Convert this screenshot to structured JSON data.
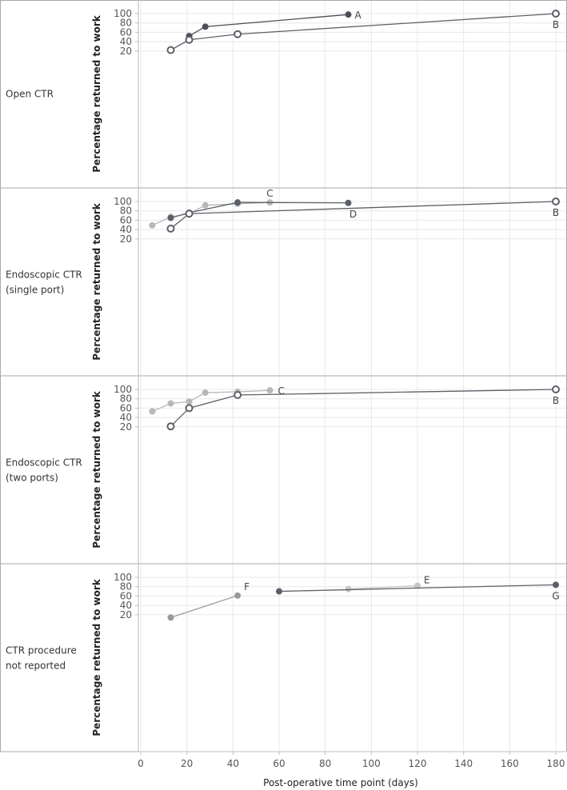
{
  "chart_data": {
    "type": "line",
    "xlabel": "Post-operative time point (days)",
    "xlim": [
      0,
      180
    ],
    "x_ticks": [
      0,
      20,
      40,
      60,
      80,
      100,
      120,
      140,
      160,
      180
    ],
    "ylim": [
      20,
      100
    ],
    "y_ticks": [
      20,
      40,
      60,
      80,
      100
    ],
    "grid": true,
    "colors": {
      "dark": "#4a4e57",
      "mid": "#5b6068",
      "gray": "#999999",
      "light": "#b8b8b8",
      "lighter": "#c6c6c6",
      "axis": "#bdbdbd",
      "grid": "#e8e8e8",
      "border": "#aaaaaa"
    },
    "panels": [
      {
        "label": "Open CTR",
        "ylabel": "Percentage returned to work",
        "series": [
          {
            "name": "A",
            "marker": "filled",
            "color": "dark",
            "points": [
              [
                21,
                52
              ],
              [
                28,
                72
              ],
              [
                90,
                98
              ]
            ]
          },
          {
            "name": "B",
            "marker": "hollow",
            "color": "mid",
            "points": [
              [
                13,
                22
              ],
              [
                21,
                44
              ],
              [
                42,
                56
              ],
              [
                180,
                100
              ]
            ]
          }
        ]
      },
      {
        "label": "Endoscopic CTR (single port)",
        "ylabel": "Percentage returned to work",
        "series": [
          {
            "name": "C",
            "marker": "filled",
            "color": "light",
            "points": [
              [
                5,
                49
              ],
              [
                13,
                67
              ],
              [
                21,
                74
              ],
              [
                28,
                92
              ],
              [
                42,
                95
              ],
              [
                56,
                98
              ]
            ]
          },
          {
            "name": "D",
            "marker": "filled",
            "color": "mid",
            "points": [
              [
                13,
                65
              ],
              [
                21,
                76
              ],
              [
                42,
                98
              ],
              [
                90,
                97
              ]
            ]
          },
          {
            "name": "B",
            "marker": "hollow",
            "color": "mid",
            "points": [
              [
                13,
                42
              ],
              [
                21,
                74
              ],
              [
                180,
                100
              ]
            ]
          }
        ]
      },
      {
        "label": "Endoscopic CTR (two ports)",
        "ylabel": "Percentage returned to work",
        "series": [
          {
            "name": "C",
            "marker": "filled",
            "color": "light",
            "points": [
              [
                5,
                53
              ],
              [
                13,
                70
              ],
              [
                21,
                74
              ],
              [
                28,
                93
              ],
              [
                42,
                95
              ],
              [
                56,
                98
              ]
            ]
          },
          {
            "name": "B",
            "marker": "hollow",
            "color": "mid",
            "points": [
              [
                13,
                21
              ],
              [
                21,
                60
              ],
              [
                42,
                88
              ],
              [
                180,
                100
              ]
            ]
          }
        ]
      },
      {
        "label": "CTR procedure not reported",
        "ylabel": "Percentage returned to work",
        "series": [
          {
            "name": "F",
            "marker": "filled",
            "color": "gray",
            "points": [
              [
                13,
                14
              ],
              [
                42,
                61
              ]
            ]
          },
          {
            "name": "E",
            "marker": "filled",
            "color": "lighter",
            "points": [
              [
                90,
                75
              ],
              [
                120,
                82
              ]
            ]
          },
          {
            "name": "G",
            "marker": "filled",
            "color": "mid",
            "points": [
              [
                60,
                70
              ],
              [
                180,
                84
              ]
            ]
          }
        ]
      }
    ]
  }
}
